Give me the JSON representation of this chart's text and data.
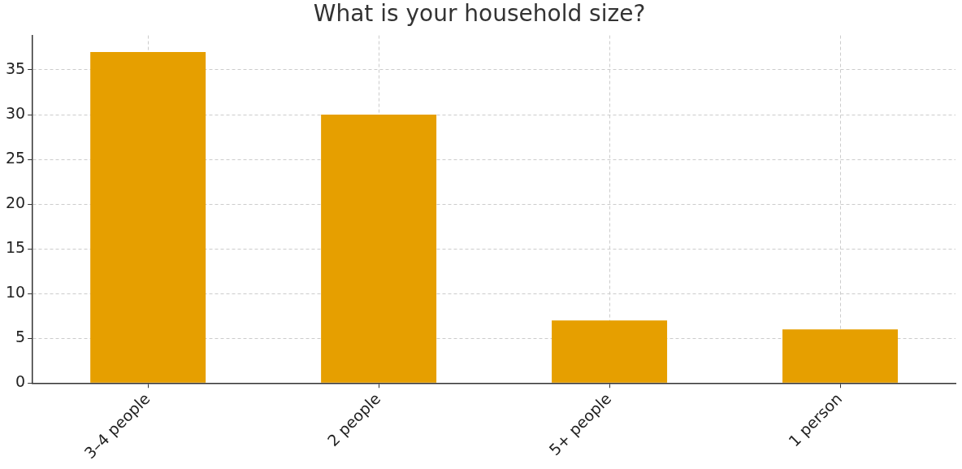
{
  "chart_data": {
    "type": "bar",
    "title": "What is your household size?",
    "categories": [
      "3–4 people",
      "2 people",
      "5+ people",
      "1 person"
    ],
    "values": [
      37,
      30,
      7,
      6
    ],
    "color": "#e69f00",
    "ylim": [
      0,
      38.85
    ],
    "yticks": [
      0,
      5,
      10,
      15,
      20,
      25,
      30,
      35
    ],
    "grid": true,
    "legend": false
  }
}
